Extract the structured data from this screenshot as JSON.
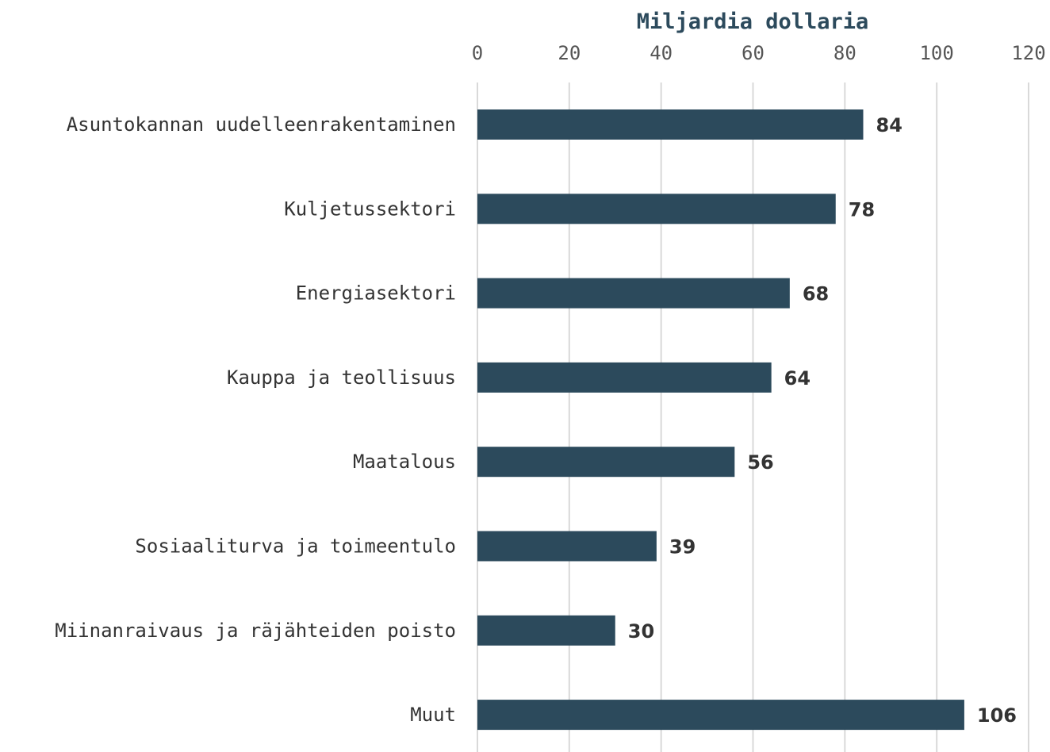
{
  "chart_data": {
    "type": "bar",
    "orientation": "horizontal",
    "title": "",
    "xlabel": "Miljardia dollaria",
    "ylabel": "",
    "xlim": [
      0,
      120
    ],
    "x_ticks": [
      0,
      20,
      40,
      60,
      80,
      100,
      120
    ],
    "grid": true,
    "bar_color": "#2c4a5c",
    "categories": [
      "Asuntokannan uudelleenrakentaminen",
      "Kuljetussektori",
      "Energiasektori",
      "Kauppa ja teollisuus",
      "Maatalous",
      "Sosiaaliturva ja toimeentulo",
      "Miinanraivaus ja räjähteiden poisto",
      "Muut"
    ],
    "values": [
      84,
      78,
      68,
      64,
      56,
      39,
      30,
      106
    ]
  }
}
